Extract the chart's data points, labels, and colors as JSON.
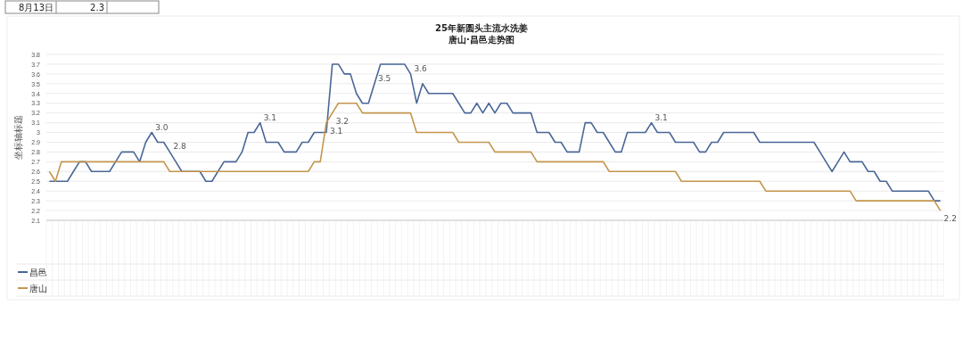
{
  "chart_data": {
    "type": "line",
    "title": "25年新圆头主流水洗姜",
    "subtitle": "唐山·昌邑走势图",
    "ylabel": "坐标轴标题",
    "annotations": [
      "8月13日",
      "2.3"
    ],
    "categories": [
      null,
      null,
      null,
      null,
      null,
      null,
      null,
      null,
      null,
      null,
      null,
      null,
      null,
      null,
      null,
      null,
      null,
      null,
      null,
      null,
      null,
      null,
      null,
      null,
      null,
      null,
      null,
      null,
      null,
      null,
      null,
      null,
      null,
      null,
      null,
      null,
      null,
      null,
      null,
      null,
      null,
      null,
      null,
      null,
      null,
      null,
      null,
      null,
      null,
      null,
      null,
      null,
      null,
      null,
      null,
      null,
      null,
      null,
      null,
      null,
      null,
      null,
      null,
      null,
      null,
      null,
      null,
      null,
      null,
      null,
      null,
      null,
      null,
      null,
      null,
      null,
      null,
      null,
      null,
      null,
      null,
      null,
      null,
      null,
      null,
      null,
      null,
      null,
      null,
      null,
      null,
      null,
      null,
      null,
      null,
      null,
      null,
      null,
      null,
      null,
      null,
      null,
      null,
      null,
      null,
      null,
      null,
      null,
      null,
      null,
      null,
      null,
      null,
      null,
      null,
      null,
      null,
      null,
      null,
      null,
      null,
      null,
      null,
      null,
      null,
      null,
      null,
      null,
      null,
      null,
      null,
      null,
      null,
      null,
      null,
      null,
      null,
      null,
      null,
      null,
      null,
      null,
      null,
      null,
      null,
      null,
      null,
      null,
      null
    ],
    "series": [
      {
        "name": "昌邑",
        "color": "#4a6797",
        "value_labels": [
          null,
          null,
          null,
          null,
          null,
          null,
          null,
          null,
          null,
          null,
          null,
          null,
          null,
          null,
          null,
          null,
          null,
          "3.0",
          null,
          null,
          "2.8",
          null,
          null,
          null,
          null,
          null,
          null,
          null,
          null,
          null,
          null,
          null,
          null,
          null,
          null,
          "3.1",
          null,
          null,
          null,
          null,
          null,
          null,
          null,
          null,
          null,
          null,
          null,
          null,
          null,
          null,
          null,
          null,
          null,
          null,
          "3.5",
          null,
          null,
          null,
          null,
          null,
          "3.6",
          null,
          null,
          null,
          null,
          null,
          null,
          null,
          null,
          null,
          null,
          null,
          null,
          null,
          null,
          null,
          null,
          null,
          null,
          null,
          null,
          null,
          null,
          null,
          null,
          null,
          null,
          null,
          null,
          null,
          null,
          null,
          null,
          null,
          null,
          null,
          null,
          null,
          null,
          null,
          "3.1",
          null,
          null,
          null,
          null,
          null,
          null,
          null,
          null,
          null,
          null,
          null,
          null,
          null,
          null,
          null,
          null,
          null,
          null,
          null,
          null,
          null,
          null,
          null,
          null,
          null,
          null,
          null,
          null,
          null,
          null,
          null,
          null,
          null,
          null,
          null,
          null,
          null,
          null,
          null,
          null,
          null,
          null,
          null,
          null,
          null,
          null,
          null,
          null
        ],
        "values": [
          2.5,
          2.5,
          2.5,
          2.5,
          2.6,
          2.7,
          2.7,
          2.6,
          2.6,
          2.6,
          2.6,
          2.7,
          2.8,
          2.8,
          2.8,
          2.7,
          2.9,
          3.0,
          2.9,
          2.9,
          2.8,
          2.7,
          2.6,
          2.6,
          2.6,
          2.6,
          2.5,
          2.5,
          2.6,
          2.7,
          2.7,
          2.7,
          2.8,
          3.0,
          3.0,
          3.1,
          2.9,
          2.9,
          2.9,
          2.8,
          2.8,
          2.8,
          2.9,
          2.9,
          3.0,
          3.0,
          3.0,
          3.7,
          3.7,
          3.6,
          3.6,
          3.4,
          3.3,
          3.3,
          3.5,
          3.7,
          3.7,
          3.7,
          3.7,
          3.7,
          3.6,
          3.3,
          3.5,
          3.4,
          3.4,
          3.4,
          3.4,
          3.4,
          3.3,
          3.2,
          3.2,
          3.3,
          3.2,
          3.3,
          3.2,
          3.3,
          3.3,
          3.2,
          3.2,
          3.2,
          3.2,
          3.0,
          3.0,
          3.0,
          2.9,
          2.9,
          2.8,
          2.8,
          2.8,
          3.1,
          3.1,
          3.0,
          3.0,
          2.9,
          2.8,
          2.8,
          3.0,
          3.0,
          3.0,
          3.0,
          3.1,
          3.0,
          3.0,
          3.0,
          2.9,
          2.9,
          2.9,
          2.9,
          2.8,
          2.8,
          2.9,
          2.9,
          3.0,
          3.0,
          3.0,
          3.0,
          3.0,
          3.0,
          2.9,
          2.9,
          2.9,
          2.9,
          2.9,
          2.9,
          2.9,
          2.9,
          2.9,
          2.9,
          2.8,
          2.7,
          2.6,
          2.7,
          2.8,
          2.7,
          2.7,
          2.7,
          2.6,
          2.6,
          2.5,
          2.5,
          2.4,
          2.4,
          2.4,
          2.4,
          2.4,
          2.4,
          2.4,
          2.3,
          2.3
        ]
      },
      {
        "name": "唐山",
        "color": "#c4964e",
        "value_labels": [
          null,
          null,
          null,
          null,
          null,
          null,
          null,
          null,
          null,
          null,
          null,
          null,
          null,
          null,
          null,
          null,
          null,
          null,
          null,
          null,
          null,
          null,
          null,
          null,
          null,
          null,
          null,
          null,
          null,
          null,
          null,
          null,
          null,
          null,
          null,
          null,
          null,
          null,
          null,
          null,
          null,
          null,
          null,
          null,
          null,
          null,
          "3.1",
          "3.2",
          null,
          null,
          null,
          null,
          null,
          null,
          null,
          null,
          null,
          null,
          null,
          null,
          null,
          null,
          null,
          null,
          null,
          null,
          null,
          null,
          null,
          null,
          null,
          null,
          null,
          null,
          null,
          null,
          null,
          null,
          null,
          null,
          null,
          null,
          null,
          null,
          null,
          null,
          null,
          null,
          null,
          null,
          null,
          null,
          null,
          null,
          null,
          null,
          null,
          null,
          null,
          null,
          null,
          null,
          null,
          null,
          null,
          null,
          null,
          null,
          null,
          null,
          null,
          null,
          null,
          null,
          null,
          null,
          null,
          null,
          null,
          null,
          null,
          null,
          null,
          null,
          null,
          null,
          null,
          null,
          null,
          null,
          null,
          null,
          null,
          null,
          null,
          null,
          null,
          null,
          null,
          null,
          null,
          null,
          null,
          null,
          null,
          null,
          null,
          null,
          "2.2"
        ],
        "values": [
          2.6,
          2.5,
          2.7,
          2.7,
          2.7,
          2.7,
          2.7,
          2.7,
          2.7,
          2.7,
          2.7,
          2.7,
          2.7,
          2.7,
          2.7,
          2.7,
          2.7,
          2.7,
          2.7,
          2.7,
          2.6,
          2.6,
          2.6,
          2.6,
          2.6,
          2.6,
          2.6,
          2.6,
          2.6,
          2.6,
          2.6,
          2.6,
          2.6,
          2.6,
          2.6,
          2.6,
          2.6,
          2.6,
          2.6,
          2.6,
          2.6,
          2.6,
          2.6,
          2.6,
          2.7,
          2.7,
          3.1,
          3.2,
          3.3,
          3.3,
          3.3,
          3.3,
          3.2,
          3.2,
          3.2,
          3.2,
          3.2,
          3.2,
          3.2,
          3.2,
          3.2,
          3.0,
          3.0,
          3.0,
          3.0,
          3.0,
          3.0,
          3.0,
          2.9,
          2.9,
          2.9,
          2.9,
          2.9,
          2.9,
          2.8,
          2.8,
          2.8,
          2.8,
          2.8,
          2.8,
          2.8,
          2.7,
          2.7,
          2.7,
          2.7,
          2.7,
          2.7,
          2.7,
          2.7,
          2.7,
          2.7,
          2.7,
          2.7,
          2.6,
          2.6,
          2.6,
          2.6,
          2.6,
          2.6,
          2.6,
          2.6,
          2.6,
          2.6,
          2.6,
          2.6,
          2.5,
          2.5,
          2.5,
          2.5,
          2.5,
          2.5,
          2.5,
          2.5,
          2.5,
          2.5,
          2.5,
          2.5,
          2.5,
          2.5,
          2.4,
          2.4,
          2.4,
          2.4,
          2.4,
          2.4,
          2.4,
          2.4,
          2.4,
          2.4,
          2.4,
          2.4,
          2.4,
          2.4,
          2.4,
          2.3,
          2.3,
          2.3,
          2.3,
          2.3,
          2.3,
          2.3,
          2.3,
          2.3,
          2.3,
          2.3,
          2.3,
          2.3,
          2.3,
          2.2
        ]
      }
    ],
    "ylim": [
      2.1,
      3.8
    ],
    "yticks": [
      2.1,
      2.2,
      2.3,
      2.4,
      2.5,
      2.6,
      2.7,
      2.8,
      2.9,
      3,
      3.1,
      3.2,
      3.3,
      3.4,
      3.5,
      3.6,
      3.7,
      3.8
    ],
    "grid": "y",
    "legend": "bottom",
    "marker": "none",
    "line_style": "solid"
  }
}
